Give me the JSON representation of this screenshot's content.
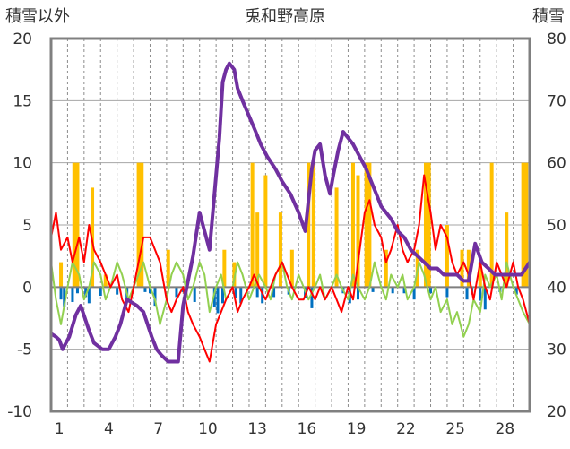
{
  "chart_data": {
    "type": "line",
    "title": "兎和野高原",
    "left_axis_label": "積雪以外",
    "right_axis_label": "積雪",
    "left_ylim": [
      -10,
      20
    ],
    "right_ylim": [
      20,
      80
    ],
    "left_ticks": [
      "20",
      "15",
      "10",
      "5",
      "0",
      "-5",
      "-10"
    ],
    "right_ticks": [
      "80",
      "70",
      "60",
      "50",
      "40",
      "30",
      "20"
    ],
    "x_range": [
      0,
      29
    ],
    "x_ticks": [
      1,
      4,
      7,
      10,
      13,
      16,
      19,
      22,
      25,
      28
    ],
    "grid": "horizontal major + vertical dashed daily",
    "colors": {
      "temperature": "#ff0000",
      "wind": "#92d050",
      "precip": "#ffc000",
      "sunshine_neg": "#0070c0",
      "snow_depth": "#7030a0",
      "frame": "#808080"
    },
    "temperature": [
      [
        0,
        4
      ],
      [
        0.3,
        6
      ],
      [
        0.6,
        3
      ],
      [
        1,
        4
      ],
      [
        1.3,
        2
      ],
      [
        1.7,
        4
      ],
      [
        2,
        2
      ],
      [
        2.3,
        5
      ],
      [
        2.6,
        3
      ],
      [
        3,
        2
      ],
      [
        3.3,
        1
      ],
      [
        3.6,
        0
      ],
      [
        4,
        1
      ],
      [
        4.3,
        -1
      ],
      [
        4.7,
        -2
      ],
      [
        5,
        0
      ],
      [
        5.3,
        2
      ],
      [
        5.6,
        4
      ],
      [
        6,
        4
      ],
      [
        6.3,
        3
      ],
      [
        6.6,
        2
      ],
      [
        7,
        -1
      ],
      [
        7.3,
        -2
      ],
      [
        7.6,
        -1
      ],
      [
        8,
        0
      ],
      [
        8.3,
        -2
      ],
      [
        8.6,
        -3
      ],
      [
        9,
        -4
      ],
      [
        9.3,
        -5
      ],
      [
        9.6,
        -6
      ],
      [
        10,
        -3
      ],
      [
        10.3,
        -2
      ],
      [
        10.6,
        -1
      ],
      [
        11,
        0
      ],
      [
        11.3,
        -2
      ],
      [
        11.6,
        -1
      ],
      [
        12,
        0
      ],
      [
        12.3,
        1
      ],
      [
        12.6,
        0
      ],
      [
        13,
        -1
      ],
      [
        13.3,
        0
      ],
      [
        13.6,
        1
      ],
      [
        14,
        2
      ],
      [
        14.3,
        1
      ],
      [
        14.6,
        0
      ],
      [
        15,
        -1
      ],
      [
        15.3,
        -1
      ],
      [
        15.6,
        0
      ],
      [
        16,
        -1
      ],
      [
        16.3,
        0
      ],
      [
        16.6,
        -1
      ],
      [
        17,
        0
      ],
      [
        17.3,
        -1
      ],
      [
        17.6,
        -2
      ],
      [
        18,
        0
      ],
      [
        18.3,
        -1
      ],
      [
        18.6,
        2
      ],
      [
        19,
        6
      ],
      [
        19.3,
        7
      ],
      [
        19.6,
        5
      ],
      [
        20,
        4
      ],
      [
        20.3,
        2
      ],
      [
        20.6,
        3
      ],
      [
        21,
        5
      ],
      [
        21.3,
        3
      ],
      [
        21.6,
        2
      ],
      [
        22,
        3
      ],
      [
        22.3,
        5
      ],
      [
        22.6,
        9
      ],
      [
        23,
        6
      ],
      [
        23.3,
        3
      ],
      [
        23.6,
        5
      ],
      [
        24,
        4
      ],
      [
        24.3,
        2
      ],
      [
        24.6,
        1
      ],
      [
        25,
        2
      ],
      [
        25.3,
        1
      ],
      [
        25.6,
        -1
      ],
      [
        26,
        2
      ],
      [
        26.3,
        0
      ],
      [
        26.6,
        -1
      ],
      [
        27,
        2
      ],
      [
        27.3,
        1
      ],
      [
        27.6,
        0
      ],
      [
        28,
        2
      ],
      [
        28.3,
        0
      ],
      [
        28.6,
        -1
      ],
      [
        29,
        -3
      ]
    ],
    "wind": [
      [
        0,
        2
      ],
      [
        0.3,
        -1
      ],
      [
        0.6,
        -3
      ],
      [
        1,
        0
      ],
      [
        1.3,
        2
      ],
      [
        1.7,
        1
      ],
      [
        2,
        -1
      ],
      [
        2.3,
        0
      ],
      [
        2.6,
        2
      ],
      [
        3,
        1
      ],
      [
        3.3,
        -1
      ],
      [
        3.6,
        0
      ],
      [
        4,
        2
      ],
      [
        4.3,
        1
      ],
      [
        4.7,
        -1
      ],
      [
        5,
        0
      ],
      [
        5.3,
        1
      ],
      [
        5.6,
        2
      ],
      [
        6,
        0
      ],
      [
        6.3,
        -1
      ],
      [
        6.6,
        -3
      ],
      [
        7,
        -1
      ],
      [
        7.3,
        1
      ],
      [
        7.6,
        2
      ],
      [
        8,
        1
      ],
      [
        8.3,
        -1
      ],
      [
        8.6,
        0
      ],
      [
        9,
        2
      ],
      [
        9.3,
        1
      ],
      [
        9.6,
        -2
      ],
      [
        10,
        0
      ],
      [
        10.3,
        1
      ],
      [
        10.6,
        -1
      ],
      [
        11,
        0
      ],
      [
        11.3,
        2
      ],
      [
        11.6,
        1
      ],
      [
        12,
        -1
      ],
      [
        12.3,
        0
      ],
      [
        12.6,
        1
      ],
      [
        13,
        0
      ],
      [
        13.3,
        -1
      ],
      [
        13.6,
        1
      ],
      [
        14,
        2
      ],
      [
        14.3,
        0
      ],
      [
        14.6,
        -1
      ],
      [
        15,
        1
      ],
      [
        15.3,
        0
      ],
      [
        15.6,
        -1
      ],
      [
        16,
        0
      ],
      [
        16.3,
        1
      ],
      [
        16.6,
        -1
      ],
      [
        17,
        0
      ],
      [
        17.3,
        1
      ],
      [
        17.6,
        0
      ],
      [
        18,
        -1
      ],
      [
        18.3,
        1
      ],
      [
        18.6,
        0
      ],
      [
        19,
        -1
      ],
      [
        19.3,
        0
      ],
      [
        19.6,
        2
      ],
      [
        20,
        0
      ],
      [
        20.3,
        -1
      ],
      [
        20.6,
        1
      ],
      [
        21,
        0
      ],
      [
        21.3,
        1
      ],
      [
        21.6,
        -1
      ],
      [
        22,
        0
      ],
      [
        22.3,
        2
      ],
      [
        22.6,
        1
      ],
      [
        23,
        -1
      ],
      [
        23.3,
        0
      ],
      [
        23.6,
        -2
      ],
      [
        24,
        -1
      ],
      [
        24.3,
        -3
      ],
      [
        24.6,
        -2
      ],
      [
        25,
        -4
      ],
      [
        25.3,
        -3
      ],
      [
        25.6,
        -1
      ],
      [
        26,
        -2
      ],
      [
        26.3,
        1
      ],
      [
        26.6,
        0
      ],
      [
        27,
        1
      ],
      [
        27.3,
        -1
      ],
      [
        27.6,
        2
      ],
      [
        28,
        0
      ],
      [
        28.3,
        -1
      ],
      [
        28.6,
        -2
      ],
      [
        29,
        -3
      ]
    ],
    "precip": [
      [
        0.6,
        2
      ],
      [
        1.4,
        10
      ],
      [
        1.6,
        10
      ],
      [
        2.5,
        8
      ],
      [
        3.3,
        1
      ],
      [
        5.3,
        10
      ],
      [
        5.5,
        10
      ],
      [
        7.1,
        3
      ],
      [
        10.5,
        3
      ],
      [
        11.1,
        2
      ],
      [
        12.2,
        10
      ],
      [
        12.5,
        6
      ],
      [
        13.0,
        9
      ],
      [
        13.9,
        6
      ],
      [
        14.6,
        3
      ],
      [
        15.6,
        10
      ],
      [
        15.9,
        10
      ],
      [
        17.3,
        8
      ],
      [
        18.3,
        10
      ],
      [
        18.6,
        9
      ],
      [
        19.1,
        10
      ],
      [
        19.3,
        10
      ],
      [
        20.3,
        3
      ],
      [
        22.2,
        3
      ],
      [
        22.7,
        10
      ],
      [
        22.9,
        10
      ],
      [
        24.0,
        5
      ],
      [
        24.9,
        3
      ],
      [
        25.3,
        3
      ],
      [
        26.0,
        2
      ],
      [
        26.7,
        10
      ],
      [
        27.6,
        6
      ],
      [
        28.6,
        10
      ],
      [
        28.8,
        10
      ]
    ],
    "sunshine_neg": [
      [
        0.6,
        -1.0
      ],
      [
        0.8,
        -1.6
      ],
      [
        1.3,
        -1.2
      ],
      [
        1.6,
        -0.5
      ],
      [
        2.1,
        -0.8
      ],
      [
        2.3,
        -1.3
      ],
      [
        3.0,
        -0.7
      ],
      [
        4.0,
        -0.6
      ],
      [
        4.6,
        -1.0
      ],
      [
        5.7,
        -0.4
      ],
      [
        6.0,
        -0.5
      ],
      [
        6.3,
        -1.5
      ],
      [
        7.6,
        -0.8
      ],
      [
        8.0,
        -0.4
      ],
      [
        8.7,
        -1.2
      ],
      [
        9.9,
        -1.6
      ],
      [
        10.1,
        -2.1
      ],
      [
        10.4,
        -1.3
      ],
      [
        11.2,
        -0.9
      ],
      [
        11.5,
        -1.3
      ],
      [
        12.5,
        -0.8
      ],
      [
        12.8,
        -1.3
      ],
      [
        13.5,
        -0.8
      ],
      [
        14.4,
        -0.6
      ],
      [
        15.4,
        -0.9
      ],
      [
        15.8,
        -1.7
      ],
      [
        17.7,
        -0.5
      ],
      [
        18.1,
        -1.3
      ],
      [
        18.6,
        -1.0
      ],
      [
        19.5,
        -0.4
      ],
      [
        20.7,
        -0.5
      ],
      [
        21.4,
        -0.5
      ],
      [
        22.0,
        -1.0
      ],
      [
        23.0,
        -0.5
      ],
      [
        24.0,
        -0.8
      ],
      [
        25.2,
        -1.0
      ],
      [
        25.5,
        -0.6
      ],
      [
        26.0,
        -1.1
      ],
      [
        26.3,
        -1.8
      ],
      [
        27.2,
        -0.4
      ],
      [
        28.2,
        -0.6
      ]
    ],
    "snow_depth": [
      [
        0,
        32.5
      ],
      [
        0.3,
        32
      ],
      [
        0.5,
        31.5
      ],
      [
        0.7,
        30
      ],
      [
        0.9,
        31
      ],
      [
        1.1,
        32
      ],
      [
        1.5,
        35.5
      ],
      [
        1.8,
        37
      ],
      [
        2.3,
        33
      ],
      [
        2.6,
        31
      ],
      [
        3.1,
        30
      ],
      [
        3.5,
        30
      ],
      [
        3.9,
        32
      ],
      [
        4.2,
        34
      ],
      [
        4.6,
        38
      ],
      [
        5.2,
        37
      ],
      [
        5.6,
        36
      ],
      [
        6.1,
        32
      ],
      [
        6.4,
        30
      ],
      [
        6.7,
        29
      ],
      [
        7.1,
        28
      ],
      [
        7.4,
        28
      ],
      [
        7.7,
        28
      ],
      [
        8,
        37
      ],
      [
        8.3,
        41
      ],
      [
        8.6,
        45
      ],
      [
        9,
        52
      ],
      [
        9.3,
        49
      ],
      [
        9.6,
        46
      ],
      [
        9.9,
        55
      ],
      [
        10.2,
        64
      ],
      [
        10.4,
        73
      ],
      [
        10.6,
        75
      ],
      [
        10.8,
        76
      ],
      [
        11.1,
        75
      ],
      [
        11.3,
        72
      ],
      [
        11.6,
        70
      ],
      [
        12,
        67.5
      ],
      [
        12.4,
        65
      ],
      [
        12.7,
        63
      ],
      [
        13.1,
        61
      ],
      [
        13.6,
        59
      ],
      [
        14,
        57
      ],
      [
        14.5,
        55
      ],
      [
        15.0,
        52
      ],
      [
        15.4,
        49
      ],
      [
        15.8,
        59
      ],
      [
        16,
        62
      ],
      [
        16.3,
        63
      ],
      [
        16.6,
        58
      ],
      [
        16.9,
        55
      ],
      [
        17.1,
        58
      ],
      [
        17.4,
        62
      ],
      [
        17.7,
        65
      ],
      [
        18,
        64
      ],
      [
        18.3,
        63
      ],
      [
        18.7,
        61
      ],
      [
        19.1,
        59
      ],
      [
        19.4,
        57
      ],
      [
        19.7,
        55
      ],
      [
        20,
        53
      ],
      [
        20.3,
        52
      ],
      [
        20.6,
        51
      ],
      [
        21,
        49
      ],
      [
        21.4,
        48
      ],
      [
        21.8,
        46
      ],
      [
        22.2,
        45
      ],
      [
        22.6,
        44
      ],
      [
        23,
        43
      ],
      [
        23.4,
        43
      ],
      [
        23.8,
        42
      ],
      [
        24.2,
        42
      ],
      [
        24.6,
        42
      ],
      [
        25,
        41
      ],
      [
        25.3,
        41
      ],
      [
        25.7,
        47
      ],
      [
        26.1,
        44
      ],
      [
        26.5,
        43
      ],
      [
        26.9,
        42
      ],
      [
        27.3,
        42
      ],
      [
        27.7,
        42
      ],
      [
        28.1,
        42
      ],
      [
        28.5,
        42
      ],
      [
        29,
        44
      ]
    ]
  }
}
